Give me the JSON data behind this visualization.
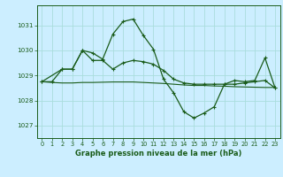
{
  "title": "Graphe pression niveau de la mer (hPa)",
  "bg_color": "#cceeff",
  "grid_color": "#aadddd",
  "line_color": "#1a5c1a",
  "ylim": [
    1026.5,
    1031.8
  ],
  "yticks": [
    1027,
    1028,
    1029,
    1030,
    1031
  ],
  "xlim": [
    -0.5,
    23.5
  ],
  "xticks": [
    0,
    1,
    2,
    3,
    4,
    5,
    6,
    7,
    8,
    9,
    10,
    11,
    12,
    13,
    14,
    15,
    16,
    17,
    18,
    19,
    20,
    21,
    22,
    23
  ],
  "series1_x": [
    0,
    1,
    2,
    3,
    4,
    5,
    6,
    7,
    8,
    9,
    10,
    11,
    12,
    13,
    14,
    15,
    16,
    17,
    18,
    19,
    20,
    21,
    22,
    23
  ],
  "series1_y": [
    1028.75,
    1028.72,
    1028.7,
    1028.7,
    1028.72,
    1028.72,
    1028.73,
    1028.74,
    1028.74,
    1028.74,
    1028.72,
    1028.7,
    1028.68,
    1028.65,
    1028.62,
    1028.6,
    1028.6,
    1028.58,
    1028.57,
    1028.55,
    1028.54,
    1028.53,
    1028.52,
    1028.52
  ],
  "series2_x": [
    0,
    1,
    2,
    3,
    4,
    5,
    6,
    7,
    8,
    9,
    10,
    11,
    12,
    13,
    14,
    15,
    16,
    17,
    18,
    19,
    20,
    21,
    22,
    23
  ],
  "series2_y": [
    1028.75,
    1028.75,
    1029.25,
    1029.25,
    1030.0,
    1029.9,
    1029.65,
    1030.65,
    1031.15,
    1031.25,
    1030.6,
    1030.05,
    1028.85,
    1028.3,
    1027.55,
    1027.3,
    1027.5,
    1027.75,
    1028.65,
    1028.8,
    1028.75,
    1028.8,
    1029.7,
    1028.5
  ],
  "series3_x": [
    0,
    2,
    3,
    4,
    5,
    6,
    7,
    8,
    9,
    10,
    11,
    12,
    13,
    14,
    15,
    16,
    17,
    18,
    19,
    20,
    21,
    22,
    23
  ],
  "series3_y": [
    1028.75,
    1029.25,
    1029.25,
    1030.0,
    1029.6,
    1029.6,
    1029.25,
    1029.5,
    1029.6,
    1029.55,
    1029.45,
    1029.2,
    1028.85,
    1028.7,
    1028.65,
    1028.65,
    1028.65,
    1028.65,
    1028.65,
    1028.7,
    1028.75,
    1028.8,
    1028.5
  ]
}
